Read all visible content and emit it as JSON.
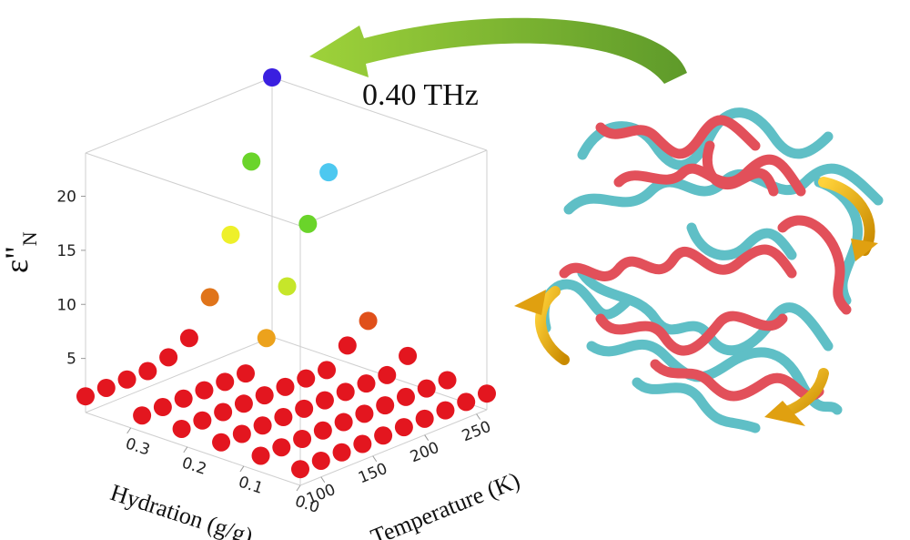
{
  "chart_data": {
    "type": "scatter3d",
    "annotation": "0.40 THz",
    "xlabel": "Temperature (K)",
    "ylabel": "Hydration (g/g)",
    "zlabel": "ε\"",
    "zlabel_sub": "N",
    "xlim": [
      80,
      260
    ],
    "ylim": [
      0,
      0.38
    ],
    "zlim": [
      0,
      24
    ],
    "xticks": [
      100,
      150,
      200,
      250
    ],
    "yticks": [
      {
        "value": 0,
        "label": "0.0"
      },
      0.1,
      0.2,
      0.3
    ],
    "zticks": [
      5,
      10,
      15,
      20
    ],
    "x": [
      80,
      100,
      120,
      140,
      160,
      180,
      200,
      220,
      240,
      260
    ],
    "series": [
      {
        "hydration": 0.0,
        "values": [
          1.5,
          1.5,
          1.5,
          1.5,
          1.5,
          1.5,
          1.5,
          1.5,
          1.5,
          1.5
        ],
        "colors": [
          "#e3161f",
          "#e3161f",
          "#e3161f",
          "#e3161f",
          "#e3161f",
          "#e3161f",
          "#e3161f",
          "#e3161f",
          "#e3161f",
          "#e3161f"
        ]
      },
      {
        "hydration": 0.07,
        "values": [
          1.5,
          1.5,
          1.5,
          1.5,
          1.5,
          1.5,
          1.5,
          1.5,
          1.5,
          1.5
        ],
        "colors": [
          "#e3161f",
          "#e3161f",
          "#e3161f",
          "#e3161f",
          "#e3161f",
          "#e3161f",
          "#e3161f",
          "#e3161f",
          "#e3161f",
          "#e3161f"
        ]
      },
      {
        "hydration": 0.14,
        "values": [
          1.5,
          1.5,
          1.5,
          1.5,
          1.5,
          1.5,
          1.5,
          1.5,
          1.5,
          2.5
        ],
        "colors": [
          "#e3161f",
          "#e3161f",
          "#e3161f",
          "#e3161f",
          "#e3161f",
          "#e3161f",
          "#e3161f",
          "#e3161f",
          "#e3161f",
          "#e3161f"
        ]
      },
      {
        "hydration": 0.21,
        "values": [
          1.5,
          1.5,
          1.5,
          1.5,
          1.5,
          1.5,
          1.5,
          1.5,
          3,
          4.5
        ],
        "colors": [
          "#e3161f",
          "#e3161f",
          "#e3161f",
          "#e3161f",
          "#e3161f",
          "#e3161f",
          "#e3161f",
          "#e3161f",
          "#e3161f",
          "#e0501a"
        ]
      },
      {
        "hydration": 0.28,
        "values": [
          1.5,
          1.5,
          1.5,
          1.5,
          1.5,
          1.5,
          4,
          8,
          13,
          17
        ],
        "colors": [
          "#e3161f",
          "#e3161f",
          "#e3161f",
          "#e3161f",
          "#e3161f",
          "#e3161f",
          "#eca21c",
          "#c6e62a",
          "#6ad42a",
          "#4dc8f0"
        ]
      },
      {
        "hydration": 0.38,
        "values": [
          1.5,
          1.5,
          1.5,
          1.5,
          2,
          3,
          6,
          11,
          17,
          24
        ],
        "colors": [
          "#e3161f",
          "#e3161f",
          "#e3161f",
          "#e3161f",
          "#e3161f",
          "#e3161f",
          "#e0741a",
          "#eef02a",
          "#6ad42a",
          "#3a1fe0"
        ]
      }
    ]
  }
}
